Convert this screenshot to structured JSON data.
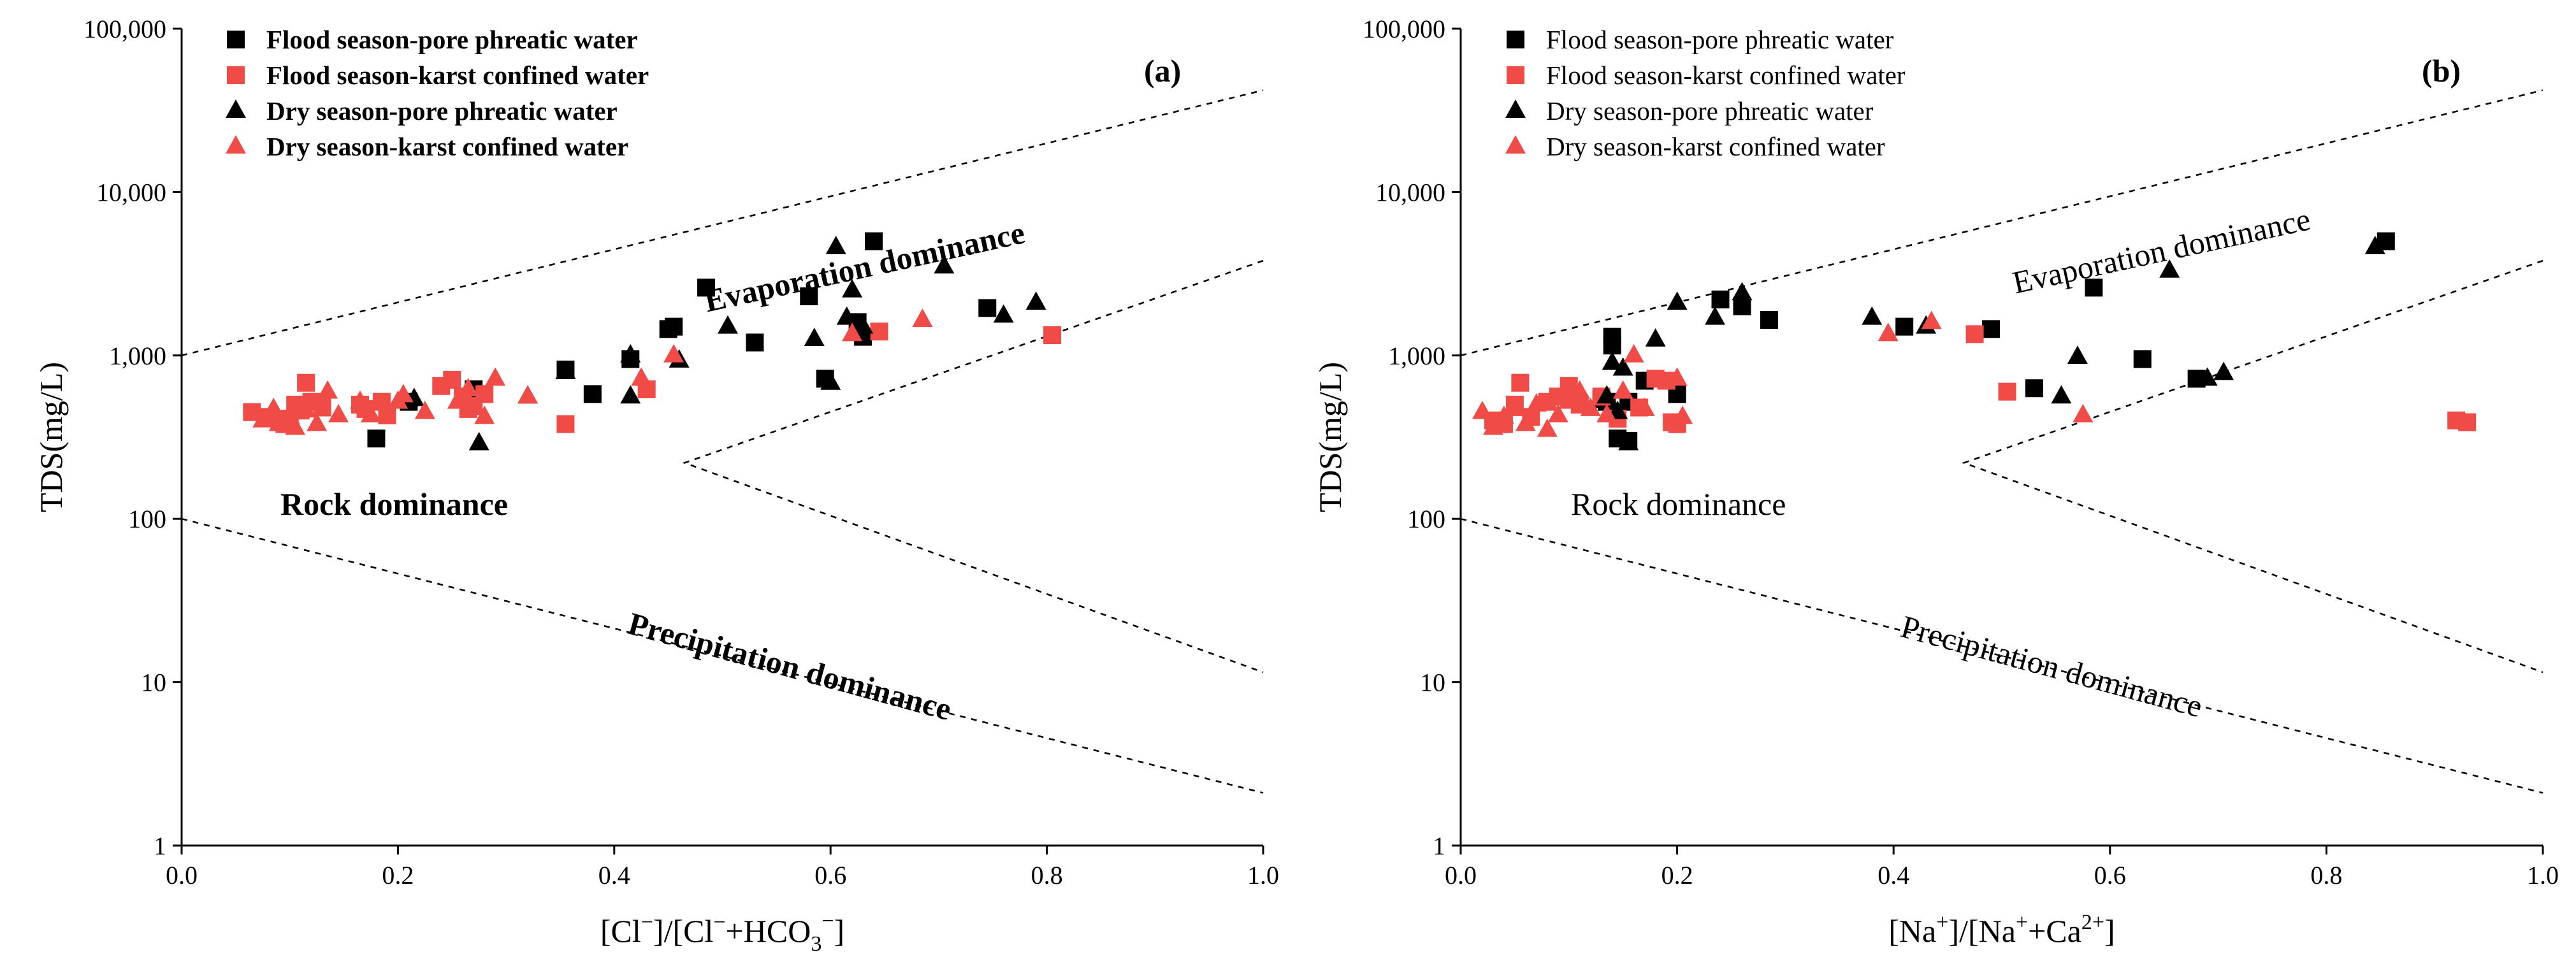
{
  "chart_data": [
    {
      "type": "scatter",
      "panel_label": "(a)",
      "xlabel": {
        "main": "[Cl",
        "sup1": "−",
        "mid": "]/[Cl",
        "sup2": "−",
        "plus": "+HCO",
        "sub": "3",
        "sup3": "−",
        "end": "]"
      },
      "ylabel": "TDS(mg/L)",
      "xlim": [
        0.0,
        1.0
      ],
      "ylim": [
        1,
        100000
      ],
      "yscale": "log",
      "xticks": [
        "0.0",
        "0.2",
        "0.4",
        "0.6",
        "0.8",
        "1.0"
      ],
      "yticks": [
        "1",
        "10",
        "100",
        "1,000",
        "10,000",
        "100,000"
      ],
      "bold_text": true,
      "region_labels": [
        "Evaporation dominance",
        "Rock dominance",
        "Precipitation dominance"
      ],
      "series": [
        {
          "name": "Flood season-pore phreatic water",
          "marker": "square",
          "color": "#000000",
          "points": [
            [
              0.18,
              310
            ],
            [
              0.21,
              520
            ],
            [
              0.27,
              620
            ],
            [
              0.355,
              820
            ],
            [
              0.38,
              580
            ],
            [
              0.415,
              950
            ],
            [
              0.45,
              1450
            ],
            [
              0.455,
              1500
            ],
            [
              0.485,
              2600
            ],
            [
              0.53,
              1200
            ],
            [
              0.58,
              2300
            ],
            [
              0.595,
              720
            ],
            [
              0.625,
              1600
            ],
            [
              0.63,
              1300
            ],
            [
              0.64,
              5000
            ],
            [
              0.745,
              1950
            ]
          ]
        },
        {
          "name": "Flood season-karst confined water",
          "marker": "square",
          "color": "#f04b47",
          "points": [
            [
              0.065,
              450
            ],
            [
              0.08,
              420
            ],
            [
              0.095,
              380
            ],
            [
              0.1,
              410
            ],
            [
              0.105,
              500
            ],
            [
              0.11,
              460
            ],
            [
              0.115,
              680
            ],
            [
              0.12,
              520
            ],
            [
              0.13,
              480
            ],
            [
              0.165,
              500
            ],
            [
              0.17,
              470
            ],
            [
              0.185,
              520
            ],
            [
              0.19,
              430
            ],
            [
              0.24,
              650
            ],
            [
              0.25,
              710
            ],
            [
              0.26,
              560
            ],
            [
              0.265,
              470
            ],
            [
              0.27,
              490
            ],
            [
              0.28,
              580
            ],
            [
              0.355,
              380
            ],
            [
              0.43,
              620
            ],
            [
              0.645,
              1400
            ],
            [
              0.805,
              1330
            ]
          ]
        },
        {
          "name": "Dry season-pore phreatic water",
          "marker": "triangle",
          "color": "#000000",
          "points": [
            [
              0.215,
              540
            ],
            [
              0.275,
              290
            ],
            [
              0.32,
              560
            ],
            [
              0.355,
              790
            ],
            [
              0.415,
              560
            ],
            [
              0.415,
              1000
            ],
            [
              0.46,
              930
            ],
            [
              0.505,
              1500
            ],
            [
              0.585,
              1260
            ],
            [
              0.6,
              680
            ],
            [
              0.605,
              4600
            ],
            [
              0.615,
              1700
            ],
            [
              0.62,
              2500
            ],
            [
              0.63,
              1500
            ],
            [
              0.705,
              3500
            ],
            [
              0.76,
              1750
            ],
            [
              0.79,
              2100
            ]
          ]
        },
        {
          "name": "Dry season-karst confined water",
          "marker": "triangle",
          "color": "#f04b47",
          "points": [
            [
              0.075,
              400
            ],
            [
              0.085,
              470
            ],
            [
              0.09,
              380
            ],
            [
              0.1,
              420
            ],
            [
              0.105,
              360
            ],
            [
              0.115,
              460
            ],
            [
              0.125,
              380
            ],
            [
              0.135,
              600
            ],
            [
              0.145,
              430
            ],
            [
              0.165,
              520
            ],
            [
              0.175,
              430
            ],
            [
              0.2,
              520
            ],
            [
              0.205,
              570
            ],
            [
              0.225,
              450
            ],
            [
              0.255,
              520
            ],
            [
              0.265,
              620
            ],
            [
              0.28,
              420
            ],
            [
              0.29,
              720
            ],
            [
              0.32,
              560
            ],
            [
              0.425,
              720
            ],
            [
              0.455,
              1000
            ],
            [
              0.62,
              1350
            ],
            [
              0.685,
              1650
            ]
          ]
        }
      ]
    },
    {
      "type": "scatter",
      "panel_label": "(b)",
      "xlabel": {
        "main": "[Na",
        "sup1": "+",
        "mid": "]/[Na",
        "sup2": "+",
        "plus": "+Ca",
        "sub": "",
        "sup3": "2+",
        "end": "]"
      },
      "ylabel": "TDS(mg/L)",
      "xlim": [
        0.0,
        1.0
      ],
      "ylim": [
        1,
        100000
      ],
      "yscale": "log",
      "xticks": [
        "0.0",
        "0.2",
        "0.4",
        "0.6",
        "0.8",
        "1.0"
      ],
      "yticks": [
        "1",
        "10",
        "100",
        "1,000",
        "10,000",
        "100,000"
      ],
      "bold_text": false,
      "region_labels": [
        "Evaporation dominance",
        "Rock dominance",
        "Precipitation dominance"
      ],
      "series": [
        {
          "name": "Flood season-pore phreatic water",
          "marker": "square",
          "color": "#000000",
          "points": [
            [
              0.13,
              540
            ],
            [
              0.135,
              520
            ],
            [
              0.14,
              1300
            ],
            [
              0.14,
              1150
            ],
            [
              0.145,
              310
            ],
            [
              0.155,
              300
            ],
            [
              0.155,
              520
            ],
            [
              0.17,
              700
            ],
            [
              0.2,
              580
            ],
            [
              0.24,
              2200
            ],
            [
              0.26,
              2000
            ],
            [
              0.285,
              1650
            ],
            [
              0.41,
              1500
            ],
            [
              0.49,
              1450
            ],
            [
              0.53,
              630
            ],
            [
              0.585,
              2600
            ],
            [
              0.63,
              950
            ],
            [
              0.68,
              720
            ],
            [
              0.855,
              5000
            ]
          ]
        },
        {
          "name": "Flood season-karst confined water",
          "marker": "square",
          "color": "#f04b47",
          "points": [
            [
              0.03,
              400
            ],
            [
              0.04,
              380
            ],
            [
              0.05,
              500
            ],
            [
              0.055,
              680
            ],
            [
              0.065,
              420
            ],
            [
              0.08,
              520
            ],
            [
              0.09,
              560
            ],
            [
              0.1,
              650
            ],
            [
              0.11,
              500
            ],
            [
              0.13,
              560
            ],
            [
              0.145,
              410
            ],
            [
              0.165,
              480
            ],
            [
              0.18,
              720
            ],
            [
              0.19,
              700
            ],
            [
              0.195,
              390
            ],
            [
              0.2,
              380
            ],
            [
              0.475,
              1350
            ],
            [
              0.505,
              600
            ],
            [
              0.92,
              400
            ],
            [
              0.93,
              390
            ]
          ]
        },
        {
          "name": "Dry season-pore phreatic water",
          "marker": "triangle",
          "color": "#000000",
          "points": [
            [
              0.135,
              560
            ],
            [
              0.14,
              900
            ],
            [
              0.145,
              450
            ],
            [
              0.15,
              830
            ],
            [
              0.155,
              290
            ],
            [
              0.18,
              1250
            ],
            [
              0.2,
              2100
            ],
            [
              0.235,
              1700
            ],
            [
              0.26,
              2400
            ],
            [
              0.38,
              1700
            ],
            [
              0.43,
              1500
            ],
            [
              0.555,
              560
            ],
            [
              0.57,
              980
            ],
            [
              0.655,
              3300
            ],
            [
              0.69,
              720
            ],
            [
              0.705,
              780
            ],
            [
              0.845,
              4600
            ]
          ]
        },
        {
          "name": "Dry season-karst confined water",
          "marker": "triangle",
          "color": "#f04b47",
          "points": [
            [
              0.02,
              450
            ],
            [
              0.03,
              360
            ],
            [
              0.04,
              420
            ],
            [
              0.05,
              470
            ],
            [
              0.06,
              380
            ],
            [
              0.07,
              500
            ],
            [
              0.08,
              350
            ],
            [
              0.09,
              430
            ],
            [
              0.1,
              520
            ],
            [
              0.11,
              600
            ],
            [
              0.12,
              470
            ],
            [
              0.135,
              430
            ],
            [
              0.15,
              600
            ],
            [
              0.16,
              1000
            ],
            [
              0.17,
              470
            ],
            [
              0.2,
              720
            ],
            [
              0.205,
              420
            ],
            [
              0.395,
              1350
            ],
            [
              0.435,
              1600
            ],
            [
              0.575,
              430
            ]
          ]
        }
      ]
    }
  ]
}
